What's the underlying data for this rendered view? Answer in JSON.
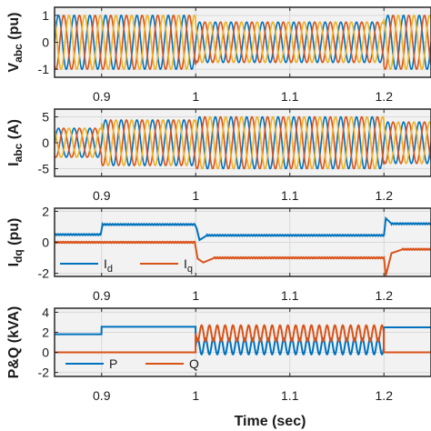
{
  "colors": {
    "blue": "#0072BD",
    "orange": "#D95319",
    "yellow": "#EDB120",
    "grid": "#d9d9d9",
    "frame": "#262626",
    "background": "#f2f2f2"
  },
  "chart_data": [
    {
      "type": "line",
      "ylabel": "V_abc (pu)",
      "ylabel_main": "V",
      "ylabel_sub": "abc",
      "ylabel_unit": " (pu)",
      "xlim": [
        0.85,
        1.25
      ],
      "ylim": [
        -1.3,
        1.3
      ],
      "yticks": [
        -1,
        0,
        1
      ],
      "xticks": [
        0.9,
        1.0,
        1.1,
        1.2
      ],
      "xtick_labels": [
        "0.9",
        "1",
        "1.1",
        "1.2"
      ],
      "grid": true,
      "series": [
        {
          "signal": "three-phase",
          "frequency_hz": 60,
          "segments": [
            {
              "t_start": 0.85,
              "t_end": 1.0,
              "amplitude": 1.0
            },
            {
              "t_start": 1.0,
              "t_end": 1.2,
              "amplitude": 0.75
            },
            {
              "t_start": 1.2,
              "t_end": 1.25,
              "amplitude": 1.0
            }
          ]
        }
      ]
    },
    {
      "type": "line",
      "ylabel": "I_abc (A)",
      "ylabel_main": "I",
      "ylabel_sub": "abc",
      "ylabel_unit": " (A)",
      "xlim": [
        0.85,
        1.25
      ],
      "ylim": [
        -6.5,
        6.5
      ],
      "yticks": [
        -5,
        0,
        5
      ],
      "xticks": [
        0.9,
        1.0,
        1.1,
        1.2
      ],
      "xtick_labels": [
        "0.9",
        "1",
        "1.1",
        "1.2"
      ],
      "grid": true,
      "series": [
        {
          "signal": "three-phase",
          "frequency_hz": 60,
          "segments": [
            {
              "t_start": 0.85,
              "t_end": 0.9,
              "amplitude": 2.8
            },
            {
              "t_start": 0.9,
              "t_end": 1.0,
              "amplitude": 4.4
            },
            {
              "t_start": 1.0,
              "t_end": 1.2,
              "amplitude": 5.0
            },
            {
              "t_start": 1.2,
              "t_end": 1.25,
              "amplitude": 4.0
            }
          ]
        }
      ]
    },
    {
      "type": "line",
      "ylabel": "I_dq (pu)",
      "ylabel_main": "I",
      "ylabel_sub": "dq",
      "ylabel_unit": " (pu)",
      "xlim": [
        0.85,
        1.25
      ],
      "ylim": [
        -2.2,
        2.2
      ],
      "yticks": [
        -2,
        0,
        2
      ],
      "xticks": [
        0.9,
        1.0,
        1.1,
        1.2
      ],
      "xtick_labels": [
        "0.9",
        "1",
        "1.1",
        "1.2"
      ],
      "grid": true,
      "legend": {
        "placement": "bottom-left",
        "entries": [
          {
            "main": "I",
            "sub": "d"
          },
          {
            "main": "I",
            "sub": "q"
          }
        ]
      },
      "series": [
        {
          "name": "Id",
          "color": "blue",
          "points": [
            [
              0.85,
              0.5
            ],
            [
              0.899,
              0.5
            ],
            [
              0.901,
              1.15
            ],
            [
              0.999,
              1.15
            ],
            [
              1.001,
              0.9
            ],
            [
              1.004,
              0.15
            ],
            [
              1.012,
              0.45
            ],
            [
              1.2,
              0.45
            ],
            [
              1.202,
              1.55
            ],
            [
              1.208,
              1.2
            ],
            [
              1.25,
              1.2
            ]
          ]
        },
        {
          "name": "Iq",
          "color": "orange",
          "points": [
            [
              0.85,
              0.0
            ],
            [
              0.999,
              0.0
            ],
            [
              1.002,
              -1.05
            ],
            [
              1.008,
              -1.3
            ],
            [
              1.02,
              -1.0
            ],
            [
              1.2,
              -1.0
            ],
            [
              1.202,
              -2.15
            ],
            [
              1.208,
              -0.7
            ],
            [
              1.22,
              -0.45
            ],
            [
              1.25,
              -0.45
            ]
          ]
        }
      ]
    },
    {
      "type": "line",
      "ylabel": "P&Q (kVA)",
      "ylabel_main": "P&Q",
      "ylabel_sub": "",
      "ylabel_unit": " (kVA)",
      "xlim": [
        0.85,
        1.25
      ],
      "ylim": [
        -2.4,
        4.4
      ],
      "yticks": [
        -2,
        0,
        2,
        4
      ],
      "xticks": [
        0.9,
        1.0,
        1.1,
        1.2
      ],
      "xtick_labels": [
        "0.9",
        "1",
        "1.1",
        "1.2"
      ],
      "xlabel": "Time (sec)",
      "grid": true,
      "legend": {
        "placement": "bottom-left",
        "entries": [
          {
            "main": "P",
            "sub": ""
          },
          {
            "main": "Q",
            "sub": ""
          }
        ]
      },
      "series": [
        {
          "name": "P",
          "color": "blue",
          "segments": [
            {
              "t_start": 0.85,
              "t_end": 0.9,
              "mean": 1.8,
              "osc": 0
            },
            {
              "t_start": 0.9,
              "t_end": 1.0,
              "mean": 2.55,
              "osc": 0
            },
            {
              "t_start": 1.0,
              "t_end": 1.2,
              "mean": 0.6,
              "osc": 0.8,
              "frequency_hz": 120
            },
            {
              "t_start": 1.2,
              "t_end": 1.25,
              "mean": 2.5,
              "osc": 0
            }
          ]
        },
        {
          "name": "Q",
          "color": "orange",
          "segments": [
            {
              "t_start": 0.85,
              "t_end": 1.0,
              "mean": 0.0,
              "osc": 0
            },
            {
              "t_start": 1.0,
              "t_end": 1.2,
              "mean": 1.9,
              "osc": 0.8,
              "frequency_hz": 120
            },
            {
              "t_start": 1.2,
              "t_end": 1.25,
              "mean": 0.0,
              "osc": 0
            }
          ]
        }
      ]
    }
  ]
}
